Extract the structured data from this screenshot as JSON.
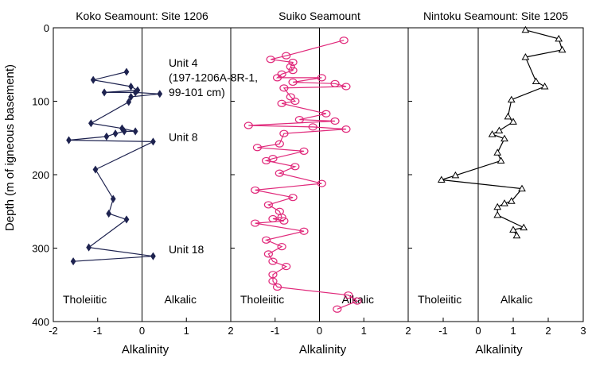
{
  "y_axis_label": "Depth (m of igneous basement)",
  "chart_data": [
    {
      "type": "scatter",
      "title": "Koko Seamount: Site 1206",
      "xlabel": "Alkalinity",
      "ylabel": "Depth (m of igneous basement)",
      "xlim": [
        -2,
        2
      ],
      "ylim": [
        400,
        0
      ],
      "x_ticks": [
        "-2",
        "-1",
        "0",
        "1",
        "2"
      ],
      "y_ticks": [
        "0",
        "100",
        "200",
        "300",
        "400"
      ],
      "color": "#1e2350",
      "marker": "diamond",
      "left_label": "Tholeiitic",
      "right_label": "Alkalic",
      "annotations": [
        {
          "text": "Unit 4",
          "x": 0.6,
          "y": 53
        },
        {
          "text": "(197-1206A-8R-1,",
          "x": 0.6,
          "y": 73
        },
        {
          "text": "99-101 cm)",
          "x": 0.6,
          "y": 93
        },
        {
          "text": "Unit 8",
          "x": 0.6,
          "y": 154
        },
        {
          "text": "Unit 18",
          "x": 0.6,
          "y": 307
        }
      ],
      "points": [
        [
          -0.35,
          60
        ],
        [
          -1.1,
          71
        ],
        [
          -0.25,
          80
        ],
        [
          -0.1,
          85
        ],
        [
          -0.85,
          88
        ],
        [
          -0.15,
          88
        ],
        [
          0.4,
          90
        ],
        [
          -0.25,
          94
        ],
        [
          -0.3,
          101
        ],
        [
          -1.15,
          130
        ],
        [
          -0.45,
          137
        ],
        [
          -0.15,
          141
        ],
        [
          -0.4,
          141
        ],
        [
          -0.6,
          144
        ],
        [
          -0.8,
          148
        ],
        [
          -1.65,
          153
        ],
        [
          0.25,
          155
        ],
        [
          -1.05,
          193
        ],
        [
          -0.65,
          233
        ],
        [
          -0.75,
          253
        ],
        [
          -0.35,
          261
        ],
        [
          -1.2,
          299
        ],
        [
          0.25,
          311
        ],
        [
          -1.55,
          318
        ]
      ]
    },
    {
      "type": "scatter",
      "title": "Suiko Seamount",
      "xlabel": "Alkalinity",
      "xlim": [
        -2,
        2
      ],
      "x_ticks": [
        "-2",
        "-1",
        "0",
        "1",
        "2"
      ],
      "ylim": [
        400,
        0
      ],
      "color": "#e0287a",
      "marker": "circle",
      "left_label": "Tholeiitic",
      "right_label": "Alkalic",
      "points": [
        [
          0.55,
          17
        ],
        [
          -0.75,
          38
        ],
        [
          -1.1,
          43
        ],
        [
          -0.6,
          47
        ],
        [
          -0.65,
          53
        ],
        [
          -0.6,
          58
        ],
        [
          -0.85,
          63
        ],
        [
          -0.95,
          68
        ],
        [
          0.05,
          68
        ],
        [
          -0.6,
          74
        ],
        [
          0.35,
          76
        ],
        [
          0.6,
          80
        ],
        [
          -0.8,
          82
        ],
        [
          -0.65,
          94
        ],
        [
          -0.55,
          100
        ],
        [
          -0.85,
          103
        ],
        [
          0.15,
          117
        ],
        [
          -0.45,
          125
        ],
        [
          0.35,
          127
        ],
        [
          -1.6,
          133
        ],
        [
          -0.15,
          135
        ],
        [
          0.6,
          138
        ],
        [
          -0.8,
          144
        ],
        [
          -0.9,
          158
        ],
        [
          -1.4,
          163
        ],
        [
          -0.35,
          168
        ],
        [
          -1.05,
          178
        ],
        [
          -1.2,
          181
        ],
        [
          -0.55,
          189
        ],
        [
          -0.9,
          198
        ],
        [
          0.05,
          212
        ],
        [
          -1.45,
          221
        ],
        [
          -0.6,
          231
        ],
        [
          -1.15,
          241
        ],
        [
          -0.9,
          250
        ],
        [
          -0.85,
          258
        ],
        [
          -1.05,
          260
        ],
        [
          -0.8,
          263
        ],
        [
          -1.45,
          266
        ],
        [
          -0.35,
          277
        ],
        [
          -1.2,
          289
        ],
        [
          -0.85,
          298
        ],
        [
          -1.15,
          308
        ],
        [
          -1.05,
          318
        ],
        [
          -0.75,
          325
        ],
        [
          -1.05,
          336
        ],
        [
          -1.05,
          345
        ],
        [
          -0.95,
          353
        ],
        [
          0.65,
          364
        ],
        [
          0.85,
          372
        ],
        [
          0.4,
          383
        ]
      ]
    },
    {
      "type": "scatter",
      "title": "Nintoku Seamount: Site 1205",
      "xlabel": "Alkalinity",
      "xlim": [
        -2,
        3
      ],
      "x_ticks": [
        "-2",
        "-1",
        "0",
        "1",
        "2",
        "3"
      ],
      "ylim": [
        400,
        0
      ],
      "color": "#000000",
      "marker": "triangle",
      "left_label": "Tholeiitic",
      "right_label": "Alkalic",
      "points": [
        [
          1.35,
          3
        ],
        [
          2.3,
          15
        ],
        [
          2.4,
          30
        ],
        [
          1.35,
          40
        ],
        [
          1.65,
          73
        ],
        [
          1.9,
          80
        ],
        [
          0.95,
          98
        ],
        [
          0.85,
          121
        ],
        [
          1.0,
          128
        ],
        [
          0.6,
          140
        ],
        [
          0.4,
          145
        ],
        [
          0.75,
          151
        ],
        [
          0.55,
          170
        ],
        [
          0.65,
          181
        ],
        [
          -0.65,
          201
        ],
        [
          -1.05,
          207
        ],
        [
          1.25,
          219
        ],
        [
          0.95,
          236
        ],
        [
          0.75,
          239
        ],
        [
          0.55,
          244
        ],
        [
          0.55,
          255
        ],
        [
          1.3,
          272
        ],
        [
          1.0,
          275
        ],
        [
          1.1,
          283
        ]
      ]
    }
  ]
}
